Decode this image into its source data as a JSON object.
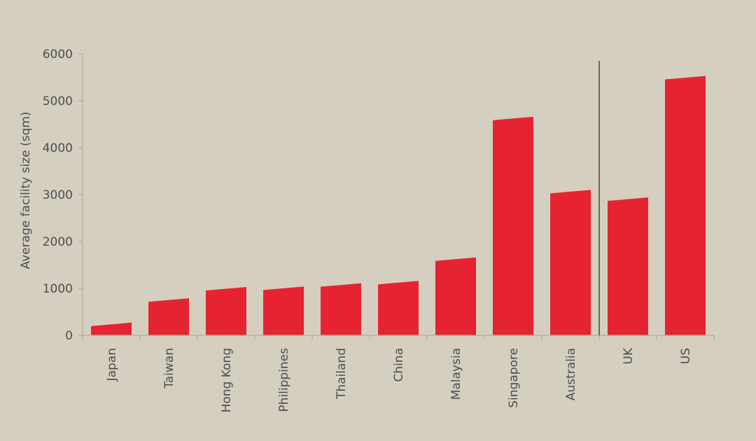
{
  "chart_data": {
    "type": "bar",
    "title": "",
    "xlabel": "",
    "ylabel": "Average facility size (sqm)",
    "ylim": [
      0,
      6000
    ],
    "yticks": [
      0,
      1000,
      2000,
      3000,
      4000,
      5000,
      6000
    ],
    "categories": [
      "Japan",
      "Taiwan",
      "Hong Kong",
      "Philippines",
      "Thailand",
      "China",
      "Malaysia",
      "Singapore",
      "Australia",
      "UK",
      "US"
    ],
    "values": [
      240,
      760,
      1000,
      1010,
      1080,
      1130,
      1630,
      4630,
      3070,
      2910,
      5500
    ],
    "separator_after": "Australia",
    "grid": false,
    "legend": "none",
    "colors": {
      "bar": "#e52331",
      "background": "#d5cfc0",
      "axis": "#b3ab9c",
      "separator": "#3a3a3a"
    }
  }
}
